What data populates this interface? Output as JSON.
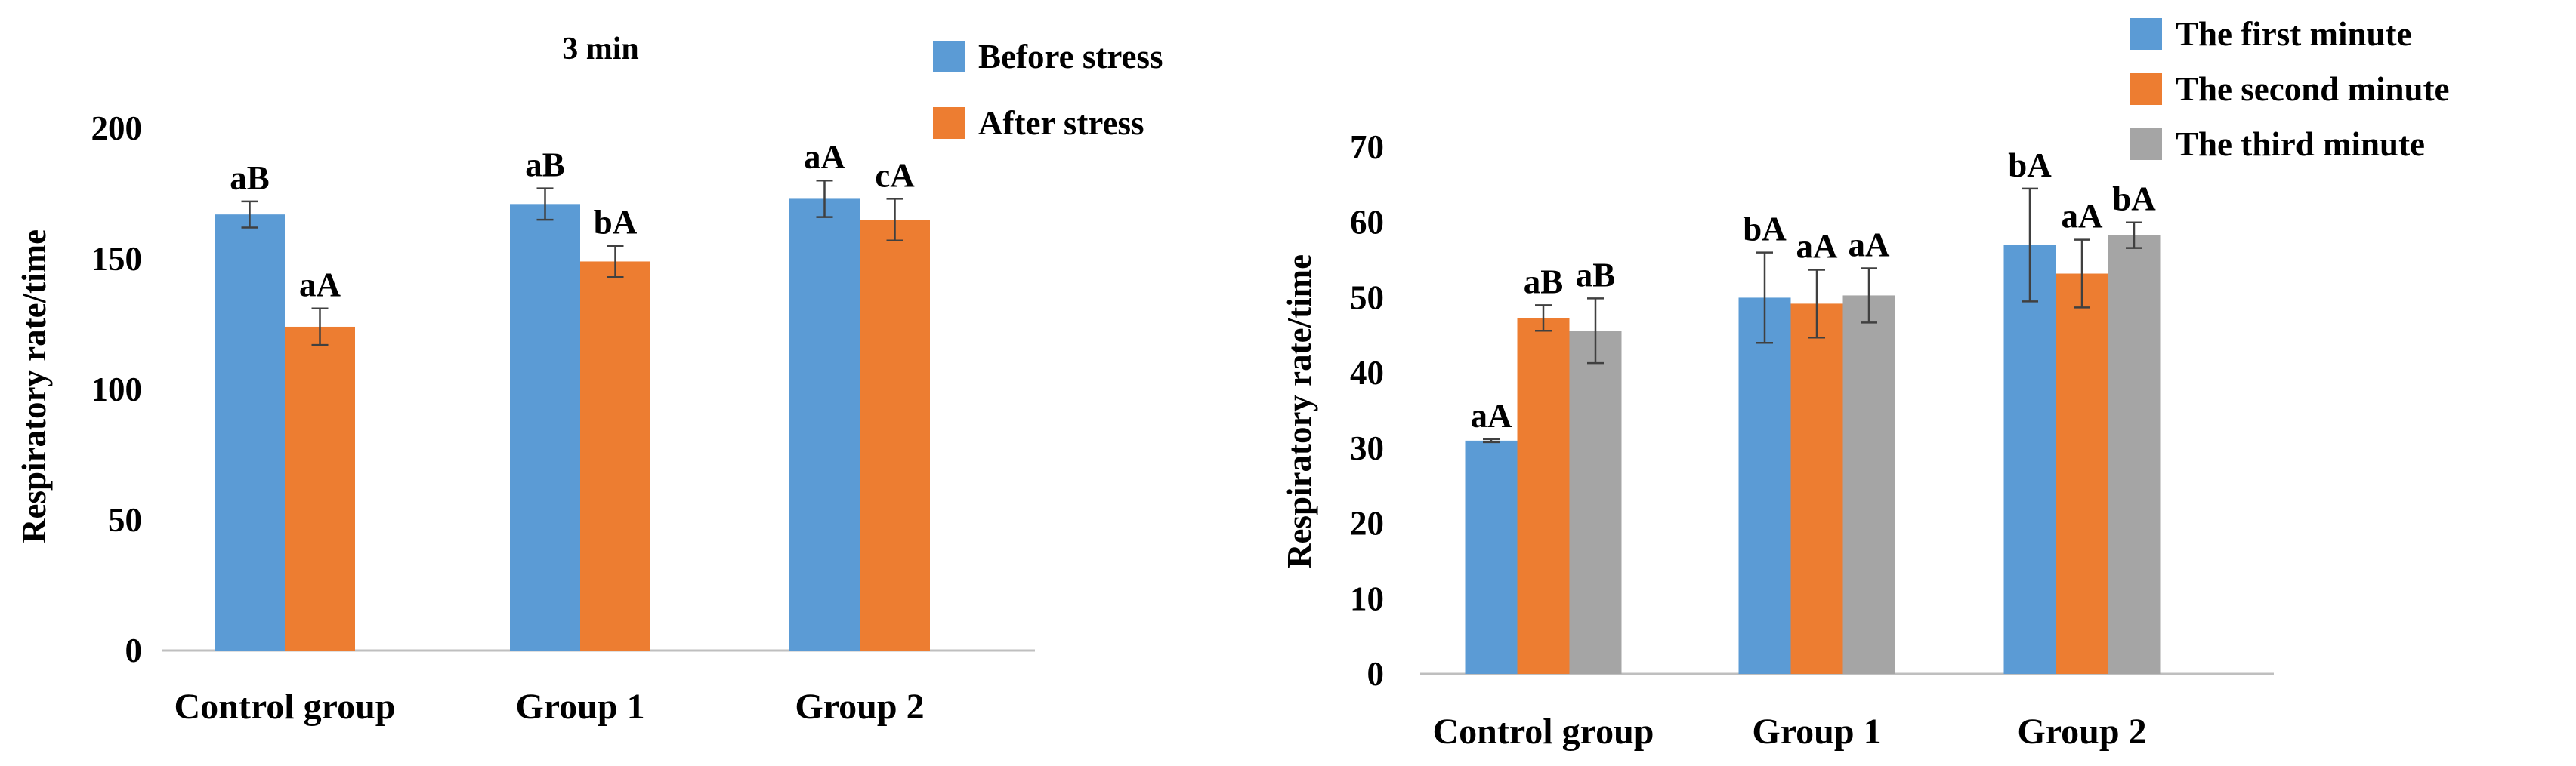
{
  "chart_data": [
    {
      "type": "bar",
      "title": "3 min",
      "xlabel": "",
      "ylabel": "Respiratory rate/time",
      "ylim": [
        0,
        200
      ],
      "yticks": [
        0,
        50,
        100,
        150,
        200
      ],
      "categories": [
        "Control group",
        "Group 1",
        "Group 2"
      ],
      "series": [
        {
          "name": "Before stress",
          "color": "#5b9bd5",
          "values": [
            167,
            171,
            173
          ],
          "errors": [
            5,
            6,
            7
          ],
          "labels": [
            "aB",
            "aB",
            "aA"
          ]
        },
        {
          "name": "After stress",
          "color": "#ed7d31",
          "values": [
            124,
            149,
            165
          ],
          "errors": [
            7,
            6,
            8
          ],
          "labels": [
            "aA",
            "bA",
            "cA"
          ]
        }
      ],
      "grid": false,
      "legend": "top-right"
    },
    {
      "type": "bar",
      "title": "",
      "xlabel": "",
      "ylabel": "Respiratory rate/time",
      "ylim": [
        0,
        70
      ],
      "yticks": [
        0,
        10,
        20,
        30,
        40,
        50,
        60,
        70
      ],
      "categories": [
        "Control group",
        "Group 1",
        "Group 2"
      ],
      "series": [
        {
          "name": "The first minute",
          "color": "#5b9bd5",
          "values": [
            31,
            50,
            57
          ],
          "errors": [
            0.2,
            6,
            7.5
          ],
          "labels": [
            "aA",
            "bA",
            "bA"
          ]
        },
        {
          "name": "The second minute",
          "color": "#ed7d31",
          "values": [
            47.3,
            49.2,
            53.2
          ],
          "errors": [
            1.7,
            4.5,
            4.5
          ],
          "labels": [
            "aB",
            "aA",
            "aA"
          ]
        },
        {
          "name": "The third minute",
          "color": "#a5a5a5",
          "values": [
            45.6,
            50.3,
            58.3
          ],
          "errors": [
            4.3,
            3.6,
            1.7
          ],
          "labels": [
            "aB",
            "aA",
            "bA"
          ]
        }
      ],
      "grid": false,
      "legend": "top-right"
    }
  ]
}
